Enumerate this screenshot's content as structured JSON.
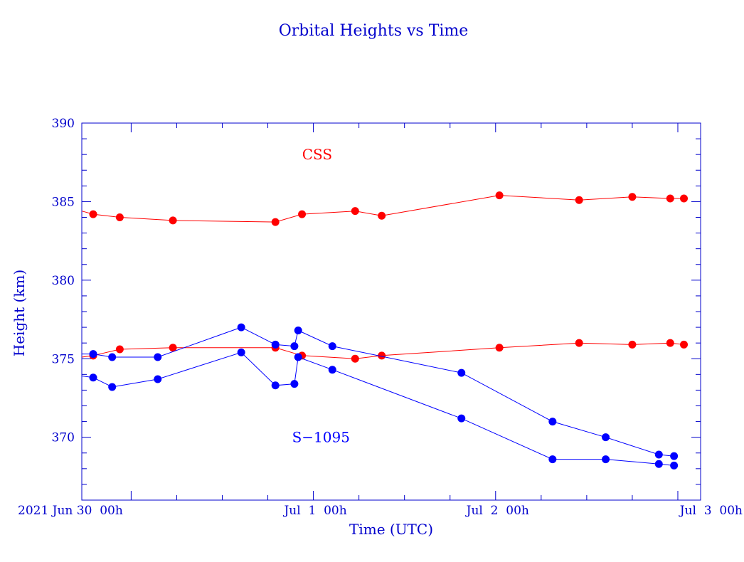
{
  "chart_data": {
    "type": "line",
    "title": "Orbital Heights vs Time",
    "xlabel": "Time (UTC)",
    "ylabel": "Height (km)",
    "x_unit": "hours",
    "xlim": [
      -6.5,
      75.0
    ],
    "ylim": [
      366,
      390
    ],
    "y_ticks": [
      370,
      375,
      380,
      385,
      390
    ],
    "x_ticks": [
      {
        "label": "2021 Jun 30  00h",
        "hour": 0
      },
      {
        "label": "Jul  1  00h",
        "hour": 24
      },
      {
        "label": "Jul  2  00h",
        "hour": 48
      },
      {
        "label": "Jul  3  00h",
        "hour": 72
      }
    ],
    "annotations": [
      {
        "text": "CSS",
        "hour": 24.5,
        "height": 388.0,
        "color": "#ff0000"
      },
      {
        "text": "S−1095",
        "hour": 25.0,
        "height": 370.0,
        "color": "#0000ff"
      }
    ],
    "grid": false,
    "series": [
      {
        "color": "#ff0000",
        "points": [
          {
            "hour": -6.5,
            "height": 384.4
          },
          {
            "hour": -5.0,
            "height": 384.2
          },
          {
            "hour": -1.5,
            "height": 384.0
          },
          {
            "hour": 5.5,
            "height": 383.8
          },
          {
            "hour": 19.0,
            "height": 383.7
          },
          {
            "hour": 22.5,
            "height": 384.2
          },
          {
            "hour": 29.5,
            "height": 384.4
          },
          {
            "hour": 33.0,
            "height": 384.1
          },
          {
            "hour": 48.5,
            "height": 385.4
          },
          {
            "hour": 59.0,
            "height": 385.1
          },
          {
            "hour": 66.0,
            "height": 385.3
          },
          {
            "hour": 71.0,
            "height": 385.2
          },
          {
            "hour": 72.8,
            "height": 385.2
          }
        ]
      },
      {
        "color": "#ff0000",
        "points": [
          {
            "hour": -6.5,
            "height": 375.1
          },
          {
            "hour": -5.0,
            "height": 375.2
          },
          {
            "hour": -1.5,
            "height": 375.6
          },
          {
            "hour": 5.5,
            "height": 375.7
          },
          {
            "hour": 19.0,
            "height": 375.7
          },
          {
            "hour": 22.5,
            "height": 375.2
          },
          {
            "hour": 29.5,
            "height": 375.0
          },
          {
            "hour": 33.0,
            "height": 375.2
          },
          {
            "hour": 48.5,
            "height": 375.7
          },
          {
            "hour": 59.0,
            "height": 376.0
          },
          {
            "hour": 66.0,
            "height": 375.9
          },
          {
            "hour": 71.0,
            "height": 376.0
          },
          {
            "hour": 72.8,
            "height": 375.9
          }
        ]
      },
      {
        "color": "#0000ff",
        "points": [
          {
            "hour": -6.5,
            "height": 375.3
          },
          {
            "hour": -5.0,
            "height": 375.3
          },
          {
            "hour": -2.5,
            "height": 375.1
          },
          {
            "hour": 3.5,
            "height": 375.1
          },
          {
            "hour": 14.5,
            "height": 377.0
          },
          {
            "hour": 19.0,
            "height": 375.9
          },
          {
            "hour": 21.5,
            "height": 375.8
          },
          {
            "hour": 22.0,
            "height": 376.8
          },
          {
            "hour": 26.5,
            "height": 375.8
          },
          {
            "hour": 43.5,
            "height": 374.1
          },
          {
            "hour": 55.5,
            "height": 371.0
          },
          {
            "hour": 62.5,
            "height": 370.0
          },
          {
            "hour": 69.5,
            "height": 368.9
          },
          {
            "hour": 71.5,
            "height": 368.8
          }
        ]
      },
      {
        "color": "#0000ff",
        "points": [
          {
            "hour": -6.5,
            "height": 373.9
          },
          {
            "hour": -5.0,
            "height": 373.8
          },
          {
            "hour": -2.5,
            "height": 373.2
          },
          {
            "hour": 3.5,
            "height": 373.7
          },
          {
            "hour": 14.5,
            "height": 375.4
          },
          {
            "hour": 19.0,
            "height": 373.3
          },
          {
            "hour": 21.5,
            "height": 373.4
          },
          {
            "hour": 22.0,
            "height": 375.1
          },
          {
            "hour": 26.5,
            "height": 374.3
          },
          {
            "hour": 43.5,
            "height": 371.2
          },
          {
            "hour": 55.5,
            "height": 368.6
          },
          {
            "hour": 62.5,
            "height": 368.6
          },
          {
            "hour": 69.5,
            "height": 368.3
          },
          {
            "hour": 71.5,
            "height": 368.2
          }
        ]
      }
    ]
  }
}
